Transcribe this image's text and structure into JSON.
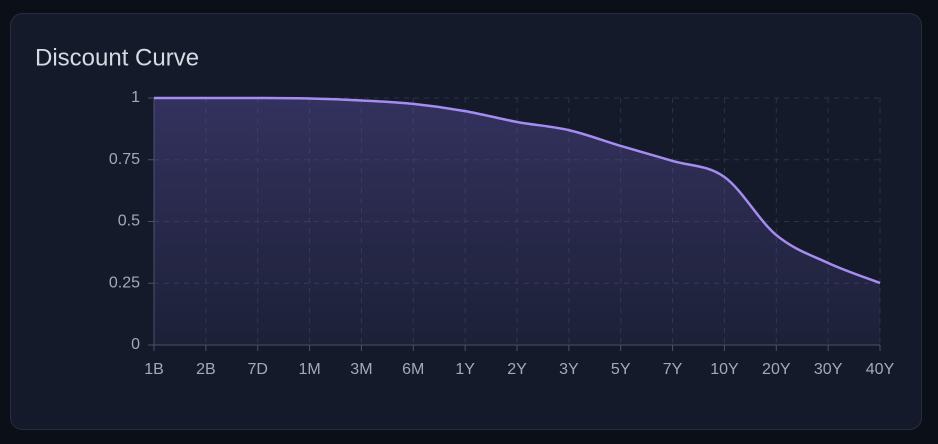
{
  "chart_data": {
    "type": "area",
    "title": "Discount Curve",
    "categories": [
      "1B",
      "2B",
      "7D",
      "1M",
      "3M",
      "6M",
      "1Y",
      "2Y",
      "3Y",
      "5Y",
      "7Y",
      "10Y",
      "20Y",
      "30Y",
      "40Y"
    ],
    "values": [
      1.0,
      1.0,
      1.0,
      0.998,
      0.99,
      0.976,
      0.947,
      0.903,
      0.87,
      0.806,
      0.745,
      0.68,
      0.445,
      0.332,
      0.251
    ],
    "color": "#a48cf0",
    "ylim": [
      0,
      1
    ],
    "yticks": [
      0,
      0.25,
      0.5,
      0.75,
      1
    ],
    "grid": true
  }
}
